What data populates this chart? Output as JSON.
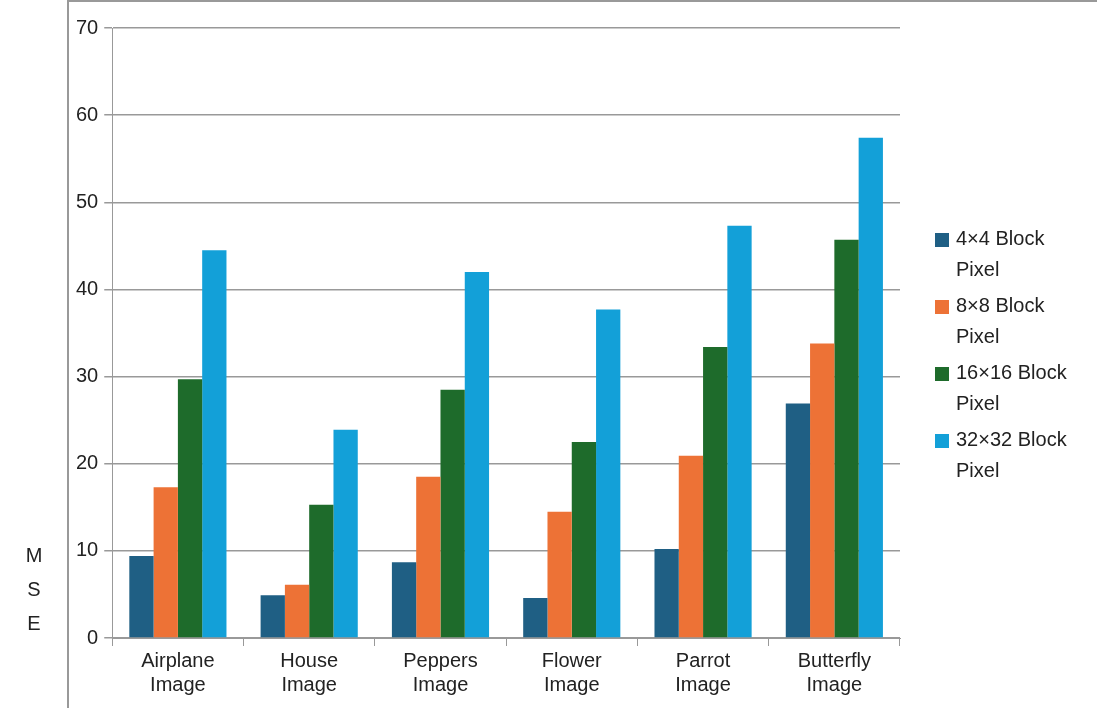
{
  "chart_data": {
    "type": "bar",
    "ylabel": "MSE",
    "categories": [
      "Airplane Image",
      "House Image",
      "Peppers Image",
      "Flower Image",
      "Parrot Image",
      "Butterfly Image"
    ],
    "series": [
      {
        "name": "4×4 Block Pixel",
        "color": "#1f5f84",
        "values": [
          9.4,
          4.9,
          8.7,
          4.6,
          10.2,
          26.9
        ]
      },
      {
        "name": "8×8 Block Pixel",
        "color": "#ed7236",
        "values": [
          17.3,
          6.1,
          18.5,
          14.5,
          20.9,
          33.8
        ]
      },
      {
        "name": "16×16 Block Pixel",
        "color": "#1e6b2b",
        "values": [
          29.7,
          15.3,
          28.5,
          22.5,
          33.4,
          45.7
        ]
      },
      {
        "name": "32×32 Block Pixel",
        "color": "#13a0d8",
        "values": [
          44.5,
          23.9,
          42.0,
          37.7,
          47.3,
          57.4
        ]
      }
    ],
    "ylim": [
      0,
      70
    ],
    "yticks": [
      0,
      10,
      20,
      30,
      40,
      50,
      60,
      70
    ],
    "grid": "y",
    "legend": "right"
  }
}
